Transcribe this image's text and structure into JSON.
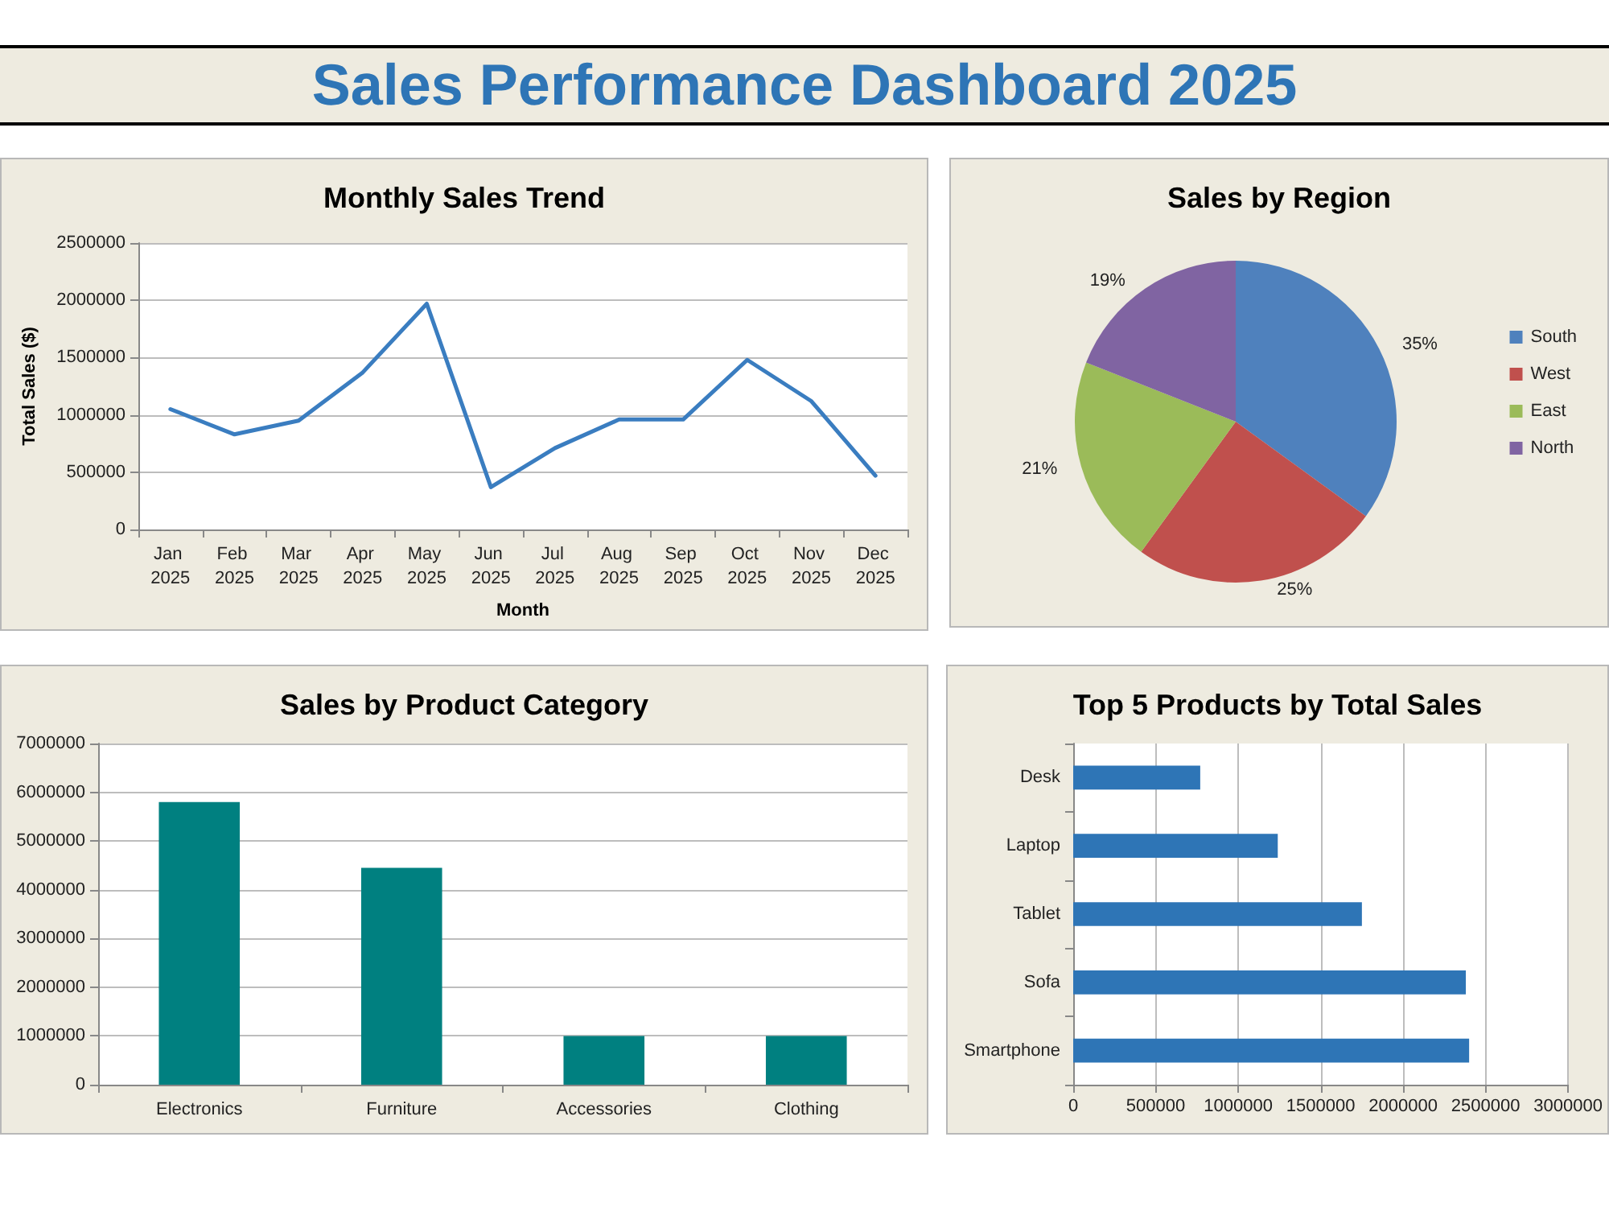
{
  "chart_data": [
    {
      "type": "other",
      "title": "Sales Performance Dashboard 2025"
    },
    {
      "type": "line",
      "title": "Monthly Sales Trend",
      "xlabel": "Month",
      "ylabel": "Total Sales ($)",
      "categories": [
        "Jan 2025",
        "Feb 2025",
        "Mar 2025",
        "Apr 2025",
        "May 2025",
        "Jun 2025",
        "Jul 2025",
        "Aug 2025",
        "Sep 2025",
        "Oct 2025",
        "Nov 2025",
        "Dec 2025"
      ],
      "values": [
        1050000,
        830000,
        950000,
        1370000,
        1970000,
        370000,
        710000,
        960000,
        960000,
        1480000,
        1120000,
        470000
      ],
      "color": "#3a7dc0",
      "ylim": [
        0,
        2500000
      ],
      "yticks": [
        0,
        500000,
        1000000,
        1500000,
        2000000,
        2500000
      ],
      "grid": "y",
      "marker": "none",
      "line_style": "solid"
    },
    {
      "type": "pie",
      "title": "Sales by Region",
      "categories": [
        "South",
        "West",
        "East",
        "North"
      ],
      "values": [
        35,
        25,
        21,
        19
      ],
      "colors": [
        "#4f81bd",
        "#c0504d",
        "#9bbb59",
        "#8064a2"
      ],
      "value_labels": [
        "35%",
        "25%",
        "21%",
        "19%"
      ],
      "legend": "right"
    },
    {
      "type": "bar",
      "title": "Sales by Product Category",
      "categories": [
        "Electronics",
        "Furniture",
        "Accessories",
        "Clothing"
      ],
      "values": [
        5800000,
        4450000,
        1000000,
        1000000
      ],
      "color": "#008080",
      "ylim": [
        0,
        7000000
      ],
      "yticks": [
        0,
        1000000,
        2000000,
        3000000,
        4000000,
        5000000,
        6000000,
        7000000
      ],
      "grid": "y"
    },
    {
      "type": "bar",
      "title": "Top 5 Products by Total Sales",
      "orientation": "horizontal",
      "categories": [
        "Desk",
        "Laptop",
        "Tablet",
        "Sofa",
        "Smartphone"
      ],
      "values": [
        770000,
        1240000,
        1750000,
        2380000,
        2400000
      ],
      "color": "#2e75b6",
      "xlim": [
        0,
        3000000
      ],
      "xticks": [
        0,
        500000,
        1000000,
        1500000,
        2000000,
        2500000,
        3000000
      ],
      "grid": "x"
    }
  ]
}
